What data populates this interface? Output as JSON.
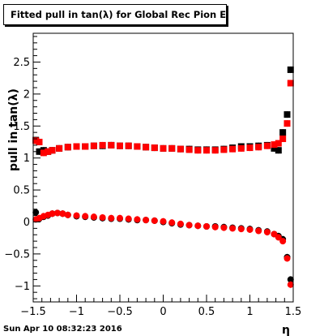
{
  "title": "Fitted pull in tan(λ) for Global Rec Pion EtapT",
  "footer": "Sun Apr 10 08:32:23 2016",
  "chart_data": {
    "type": "scatter",
    "xlabel": "η",
    "ylabel": "pull in tan(λ)",
    "xlim": [
      -1.5,
      1.5
    ],
    "ylim": [
      -1.25,
      2.95
    ],
    "x_ticks": [
      "−1.5",
      "−1",
      "−0.5",
      "0",
      "0.5",
      "1",
      "1.5"
    ],
    "y_ticks": [
      "−1",
      "−0.5",
      "0",
      "0.5",
      "1",
      "1.5",
      "2",
      "2.5"
    ],
    "grid": false,
    "series": [
      {
        "marker": "square",
        "color": "#000000",
        "x": [
          -1.47,
          -1.43,
          -1.38,
          -1.33,
          -1.28,
          -1.2,
          -1.1,
          -1.0,
          -0.9,
          -0.8,
          -0.7,
          -0.6,
          -0.5,
          -0.4,
          -0.3,
          -0.2,
          -0.1,
          0.0,
          0.1,
          0.2,
          0.3,
          0.4,
          0.5,
          0.6,
          0.7,
          0.8,
          0.9,
          1.0,
          1.1,
          1.2,
          1.28,
          1.33,
          1.38,
          1.43,
          1.47
        ],
        "y": [
          1.28,
          1.1,
          1.12,
          1.1,
          1.12,
          1.15,
          1.17,
          1.18,
          1.18,
          1.19,
          1.19,
          1.2,
          1.19,
          1.19,
          1.18,
          1.17,
          1.16,
          1.15,
          1.15,
          1.14,
          1.14,
          1.13,
          1.13,
          1.13,
          1.14,
          1.16,
          1.18,
          1.18,
          1.19,
          1.2,
          1.15,
          1.12,
          1.4,
          1.68,
          2.38
        ]
      },
      {
        "marker": "square",
        "color": "#ff0000",
        "x": [
          -1.47,
          -1.43,
          -1.38,
          -1.33,
          -1.28,
          -1.2,
          -1.1,
          -1.0,
          -0.9,
          -0.8,
          -0.7,
          -0.6,
          -0.5,
          -0.4,
          -0.3,
          -0.2,
          -0.1,
          0.0,
          0.1,
          0.2,
          0.3,
          0.4,
          0.5,
          0.6,
          0.7,
          0.8,
          0.9,
          1.0,
          1.1,
          1.2,
          1.28,
          1.33,
          1.38,
          1.43,
          1.47
        ],
        "y": [
          1.27,
          1.25,
          1.08,
          1.1,
          1.12,
          1.15,
          1.17,
          1.18,
          1.18,
          1.19,
          1.2,
          1.2,
          1.19,
          1.19,
          1.18,
          1.17,
          1.16,
          1.15,
          1.15,
          1.14,
          1.13,
          1.12,
          1.12,
          1.12,
          1.13,
          1.14,
          1.15,
          1.16,
          1.17,
          1.19,
          1.21,
          1.23,
          1.3,
          1.54,
          2.17
        ]
      },
      {
        "marker": "circle",
        "color": "#000000",
        "x": [
          -1.47,
          -1.43,
          -1.38,
          -1.33,
          -1.28,
          -1.22,
          -1.16,
          -1.1,
          -1.0,
          -0.9,
          -0.8,
          -0.7,
          -0.6,
          -0.5,
          -0.4,
          -0.3,
          -0.2,
          -0.1,
          0.0,
          0.1,
          0.2,
          0.3,
          0.4,
          0.5,
          0.6,
          0.7,
          0.8,
          0.9,
          1.0,
          1.1,
          1.2,
          1.28,
          1.33,
          1.38,
          1.43,
          1.47
        ],
        "y": [
          0.15,
          0.05,
          0.08,
          0.1,
          0.13,
          0.14,
          0.13,
          0.11,
          0.09,
          0.08,
          0.07,
          0.06,
          0.05,
          0.05,
          0.04,
          0.03,
          0.03,
          0.02,
          0.0,
          -0.02,
          -0.04,
          -0.05,
          -0.06,
          -0.07,
          -0.07,
          -0.08,
          -0.09,
          -0.1,
          -0.11,
          -0.13,
          -0.15,
          -0.19,
          -0.22,
          -0.27,
          -0.55,
          -0.9
        ]
      },
      {
        "marker": "circle",
        "color": "#ff0000",
        "x": [
          -1.47,
          -1.43,
          -1.38,
          -1.33,
          -1.28,
          -1.22,
          -1.16,
          -1.1,
          -1.0,
          -0.9,
          -0.8,
          -0.7,
          -0.6,
          -0.5,
          -0.4,
          -0.3,
          -0.2,
          -0.1,
          0.0,
          0.1,
          0.2,
          0.3,
          0.4,
          0.5,
          0.6,
          0.7,
          0.8,
          0.9,
          1.0,
          1.1,
          1.2,
          1.28,
          1.33,
          1.38,
          1.43,
          1.47
        ],
        "y": [
          0.04,
          0.06,
          0.09,
          0.11,
          0.13,
          0.14,
          0.13,
          0.11,
          0.1,
          0.09,
          0.08,
          0.07,
          0.06,
          0.06,
          0.05,
          0.04,
          0.03,
          0.02,
          0.01,
          -0.01,
          -0.03,
          -0.05,
          -0.06,
          -0.07,
          -0.08,
          -0.09,
          -0.1,
          -0.11,
          -0.12,
          -0.14,
          -0.16,
          -0.19,
          -0.24,
          -0.3,
          -0.57,
          -0.98
        ]
      }
    ]
  }
}
